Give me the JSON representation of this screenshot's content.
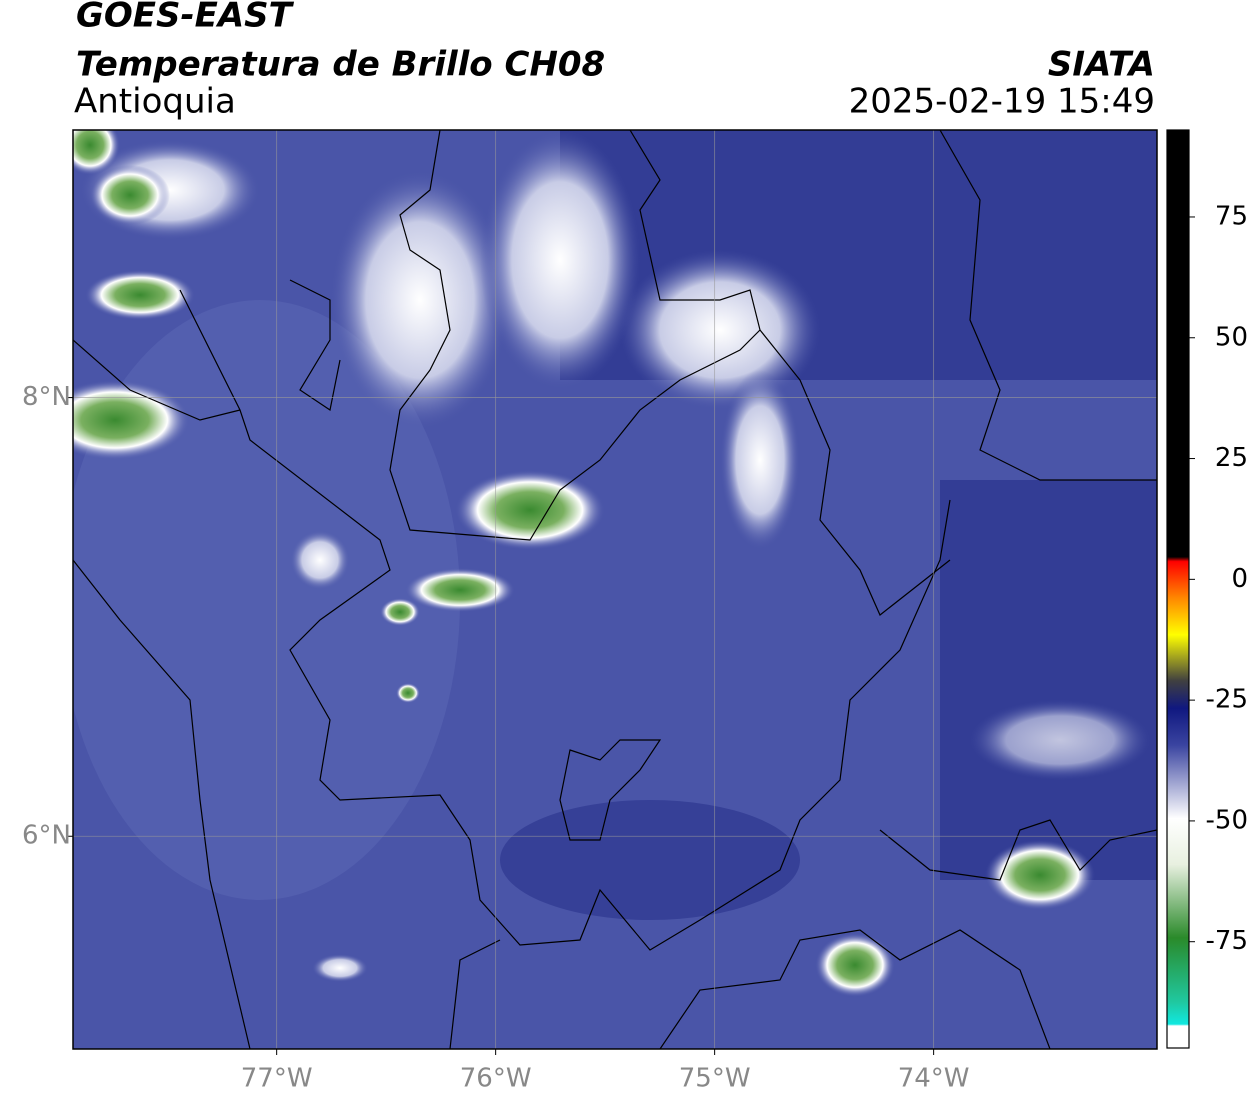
{
  "header": {
    "title": "GOES-EAST",
    "subtitle": "Temperatura de Brillo CH08",
    "region": "Antioquia",
    "source": "SIATA",
    "datetime": "2025-02-19 15:49"
  },
  "map": {
    "lon_range": [
      -77.93,
      -72.98
    ],
    "lat_range": [
      5.03,
      9.22
    ],
    "lon_ticks": [
      {
        "value": -77,
        "label": "77°W"
      },
      {
        "value": -76,
        "label": "76°W"
      },
      {
        "value": -75,
        "label": "75°W"
      },
      {
        "value": -74,
        "label": "74°W"
      }
    ],
    "lat_ticks": [
      {
        "value": 8,
        "label": "8°N"
      },
      {
        "value": 6,
        "label": "6°N"
      }
    ]
  },
  "colorbar": {
    "range": [
      -97,
      93
    ],
    "ticks": [
      75,
      50,
      25,
      0,
      -25,
      -50,
      -75
    ]
  }
}
